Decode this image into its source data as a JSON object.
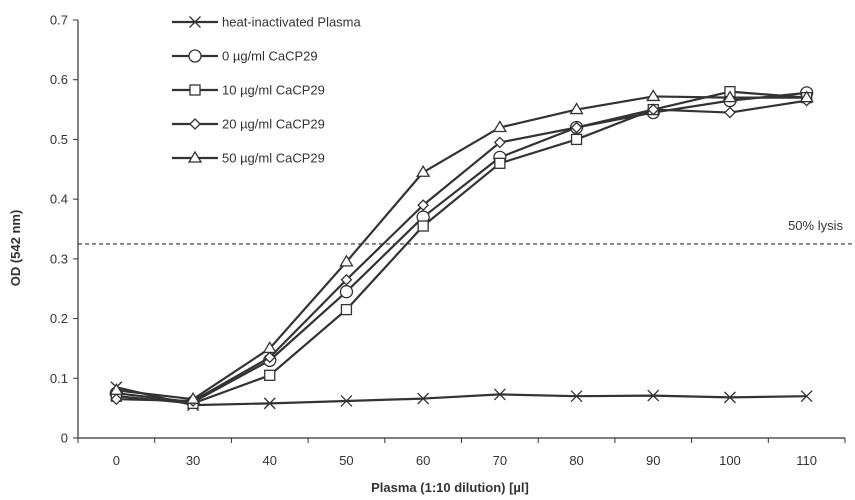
{
  "chart_data": {
    "type": "line",
    "title": "",
    "xlabel": "Plasma (1:10 dilution) [µl]",
    "ylabel": "OD (542 nm)",
    "categories": [
      "0",
      "30",
      "40",
      "50",
      "60",
      "70",
      "80",
      "90",
      "100",
      "110"
    ],
    "ylim": [
      0,
      0.7
    ],
    "yticks": [
      "0",
      "0.1",
      "0.2",
      "0.3",
      "0.4",
      "0.5",
      "0.6",
      "0.7"
    ],
    "grid": false,
    "legend_position": "top-left",
    "series": [
      {
        "name": "heat-inactivated Plasma",
        "marker": "x",
        "values": [
          0.085,
          0.055,
          0.058,
          0.062,
          0.066,
          0.073,
          0.07,
          0.071,
          0.068,
          0.07
        ]
      },
      {
        "name": "0 µg/ml CaCP29",
        "marker": "circle",
        "values": [
          0.075,
          0.06,
          0.13,
          0.245,
          0.37,
          0.47,
          0.52,
          0.545,
          0.565,
          0.578
        ]
      },
      {
        "name": "10 µg/ml CaCP29",
        "marker": "square",
        "values": [
          0.07,
          0.058,
          0.105,
          0.215,
          0.355,
          0.46,
          0.5,
          0.55,
          0.58,
          0.57
        ]
      },
      {
        "name": "20 µg/ml CaCP29",
        "marker": "diamond",
        "values": [
          0.065,
          0.062,
          0.135,
          0.265,
          0.39,
          0.495,
          0.52,
          0.55,
          0.545,
          0.565
        ]
      },
      {
        "name": "50 µg/ml CaCP29",
        "marker": "triangle",
        "values": [
          0.08,
          0.065,
          0.15,
          0.295,
          0.445,
          0.52,
          0.55,
          0.572,
          0.57,
          0.57
        ]
      }
    ],
    "annotations": [
      {
        "text": "50% lysis",
        "y": 0.325,
        "style": "dashed-horizontal-line"
      }
    ],
    "line_color": "#333333"
  }
}
